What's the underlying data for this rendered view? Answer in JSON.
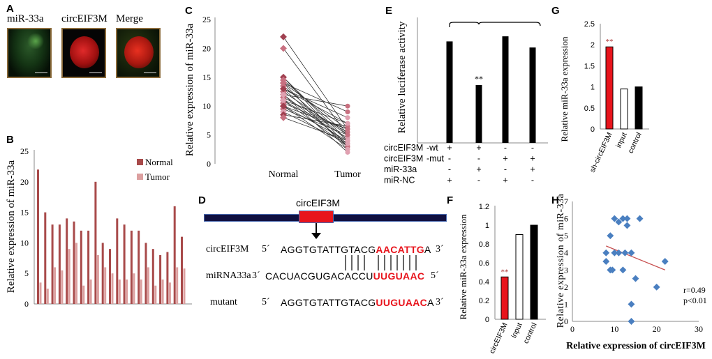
{
  "panel_labels": {
    "A": "A",
    "B": "B",
    "C": "C",
    "D": "D",
    "E": "E",
    "F": "F",
    "G": "G",
    "H": "H"
  },
  "panel_a": {
    "titles": [
      "miR-33a",
      "circEIF3M",
      "Merge"
    ]
  },
  "colors": {
    "normal": "#a84a4a",
    "tumor": "#dca0a0",
    "red": "#e8141c",
    "black": "#000000",
    "scatter": "#4a7fc0",
    "trend": "#c85050"
  },
  "chart_data": [
    {
      "id": "B",
      "type": "bar",
      "ylabel": "Relative expression of miR-33a",
      "ylim": [
        0,
        25
      ],
      "yticks": [
        0,
        5,
        10,
        15,
        20,
        25
      ],
      "series": [
        {
          "name": "Normal",
          "values": [
            22,
            15,
            13,
            13,
            14,
            13.5,
            12,
            12,
            20,
            10,
            9,
            14,
            13,
            12,
            12,
            10,
            9,
            8,
            8.5,
            16,
            11
          ]
        },
        {
          "name": "Tumor",
          "values": [
            3.5,
            2.5,
            6,
            5.5,
            9,
            10,
            3,
            4,
            8,
            6,
            5,
            4,
            4,
            5,
            4,
            6,
            3,
            4,
            3.5,
            6,
            5.8
          ]
        }
      ]
    },
    {
      "id": "C",
      "type": "line",
      "ylabel": "Relative expression of miR-33a",
      "ylim": [
        0,
        25
      ],
      "yticks": [
        0,
        5,
        10,
        15,
        20,
        25
      ],
      "categories": [
        "Normal",
        "Tumor"
      ],
      "pairs": [
        [
          22,
          6
        ],
        [
          20,
          5
        ],
        [
          15,
          4
        ],
        [
          15,
          3
        ],
        [
          14.5,
          5
        ],
        [
          14,
          6
        ],
        [
          14,
          2.5
        ],
        [
          13.5,
          4
        ],
        [
          13,
          3
        ],
        [
          13,
          7
        ],
        [
          12.5,
          5
        ],
        [
          12,
          3.5
        ],
        [
          12,
          2
        ],
        [
          11.5,
          5.5
        ],
        [
          11,
          4.5
        ],
        [
          11,
          3
        ],
        [
          10.5,
          6
        ],
        [
          10,
          4
        ],
        [
          10,
          2.5
        ],
        [
          9.5,
          5
        ],
        [
          9,
          3.5
        ],
        [
          8.5,
          6.5
        ],
        [
          8,
          4
        ],
        [
          12,
          10
        ],
        [
          13,
          8
        ],
        [
          14,
          9
        ],
        [
          11,
          7
        ],
        [
          10,
          6
        ]
      ]
    },
    {
      "id": "E",
      "type": "bar",
      "ylabel": "Relative luciferase activity",
      "values": [
        100,
        57,
        105,
        94
      ],
      "annotation": "**",
      "conditions": [
        {
          "label": "circEIF3M",
          "suffix": "-wt",
          "marks": [
            "+",
            "+",
            "-",
            "-"
          ]
        },
        {
          "label": "circEIF3M",
          "suffix": "-mut",
          "marks": [
            "-",
            "-",
            "+",
            "+"
          ]
        },
        {
          "label": "miR-33a",
          "suffix": "",
          "marks": [
            "-",
            "+",
            "-",
            "+"
          ]
        },
        {
          "label": "miR-NC",
          "suffix": "",
          "marks": [
            "+",
            "-",
            "+",
            "-"
          ]
        }
      ]
    },
    {
      "id": "F",
      "type": "bar",
      "ylabel": "Relative miR-33a expression",
      "ylim": [
        0,
        1.2
      ],
      "yticks": [
        "0",
        "0.2",
        "0.4",
        "0.6",
        "0.8",
        "1",
        "1.2"
      ],
      "categories": [
        "circEIF3M",
        "input",
        "control"
      ],
      "values": [
        0.45,
        0.9,
        1.0
      ],
      "annotation": "**"
    },
    {
      "id": "G",
      "type": "bar",
      "ylabel": "Relative miR-33a expression",
      "ylim": [
        0,
        2.5
      ],
      "yticks": [
        "0",
        "0.5",
        "1",
        "1.5",
        "2",
        "2.5"
      ],
      "categories": [
        "sh-circEIF3M",
        "input",
        "control"
      ],
      "values": [
        1.95,
        0.95,
        1.0
      ],
      "annotation": "**"
    },
    {
      "id": "H",
      "type": "scatter",
      "xlabel": "Relative expression of circEIF3M",
      "ylabel": "Relative expression of miR-33a",
      "xlim": [
        0,
        30
      ],
      "ylim": [
        0,
        7
      ],
      "xticks": [
        0,
        10,
        20,
        30
      ],
      "yticks": [
        0,
        1,
        2,
        3,
        4,
        5,
        6,
        7
      ],
      "points": [
        [
          8,
          3.5
        ],
        [
          8,
          4
        ],
        [
          9,
          5
        ],
        [
          9,
          3
        ],
        [
          10,
          6
        ],
        [
          10,
          4
        ],
        [
          11,
          5.8
        ],
        [
          11,
          4
        ],
        [
          12,
          6
        ],
        [
          12,
          3
        ],
        [
          12.5,
          4
        ],
        [
          13,
          5.6
        ],
        [
          13,
          6
        ],
        [
          14,
          4
        ],
        [
          14,
          1
        ],
        [
          14,
          0
        ],
        [
          15,
          2.5
        ],
        [
          16,
          6
        ],
        [
          20,
          2
        ],
        [
          22,
          3.5
        ],
        [
          9.5,
          3
        ]
      ],
      "trend": [
        [
          8,
          4.4
        ],
        [
          22,
          3.0
        ]
      ],
      "stats": [
        "r=0.49",
        "p<0.01"
      ]
    }
  ],
  "legend_b": [
    "Normal",
    "Tumor"
  ],
  "panel_d": {
    "gene_label": "circEIF3M",
    "rows": [
      {
        "name": "circEIF3M",
        "p5": "5´",
        "seq_black": "AGGTGTATTGTACG",
        "seq_red": "AACATTG",
        "seq_tail": "A",
        "p3": "3´"
      },
      {
        "name": "miRNA33a",
        "p5": "3´",
        "seq_black": "CACUACGUGACACCU",
        "seq_red": "UUGUAAC",
        "seq_tail": "",
        "p3": "5´"
      },
      {
        "name": "mutant",
        "p5": "5´",
        "seq_black": "AGGTGTATTGTACG",
        "seq_red": "UUGUAAC",
        "seq_tail": "A",
        "p3": "3´"
      }
    ]
  }
}
